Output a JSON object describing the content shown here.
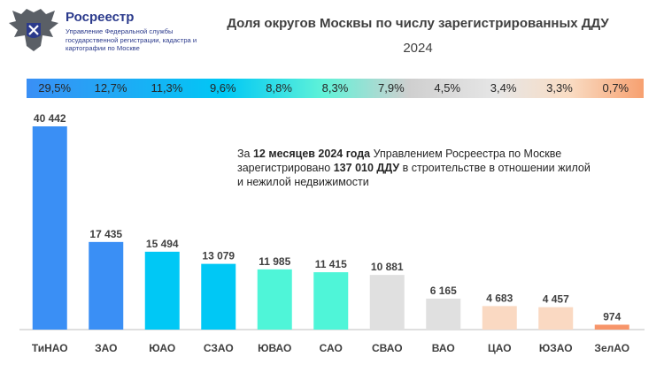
{
  "header": {
    "org_name": "Росреестр",
    "org_desc": "Управление Федеральной службы государственной регистрации, кадастра и картографии по Москве",
    "logo_icon": "double-headed-eagle-emblem-icon"
  },
  "share_band": [
    "29,5%",
    "12,7%",
    "11,3%",
    "9,6%",
    "8,8%",
    "8,3%",
    "7,9%",
    "4,5%",
    "3,4%",
    "3,3%",
    "0,7%"
  ],
  "annotation": {
    "prefix": "За ",
    "period": "12 месяцев 2024 года",
    "middle": " Управлением Росреестра по Москве зарегистрировано ",
    "count": "137 010 ДДУ",
    "suffix": " в строительстве в отношении жилой и нежилой недвижимости"
  },
  "chart_data": {
    "type": "bar",
    "title": "Доля округов Москвы по числу зарегистрированных ДДУ",
    "subtitle": "2024",
    "categories": [
      "ТиНАО",
      "ЗАО",
      "ЮАО",
      "СЗАО",
      "ЮВАО",
      "САО",
      "СВАО",
      "ВАО",
      "ЦАО",
      "ЮЗАО",
      "ЗелАО"
    ],
    "values": [
      40442,
      17435,
      15494,
      13079,
      11985,
      11415,
      10881,
      6165,
      4683,
      4457,
      974
    ],
    "value_labels": [
      "40 442",
      "17 435",
      "15 494",
      "13 079",
      "11 985",
      "11 415",
      "10 881",
      "6 165",
      "4 683",
      "4 457",
      "974"
    ],
    "colors": [
      "#3a8ff5",
      "#3a8ff5",
      "#00c8f5",
      "#00c8f5",
      "#4ff5d8",
      "#4ff5d8",
      "#e0e0e0",
      "#e0e0e0",
      "#fad9c2",
      "#fad9c2",
      "#f7956a"
    ],
    "ylim": [
      0,
      40442
    ],
    "grid": false,
    "legend": "none"
  }
}
